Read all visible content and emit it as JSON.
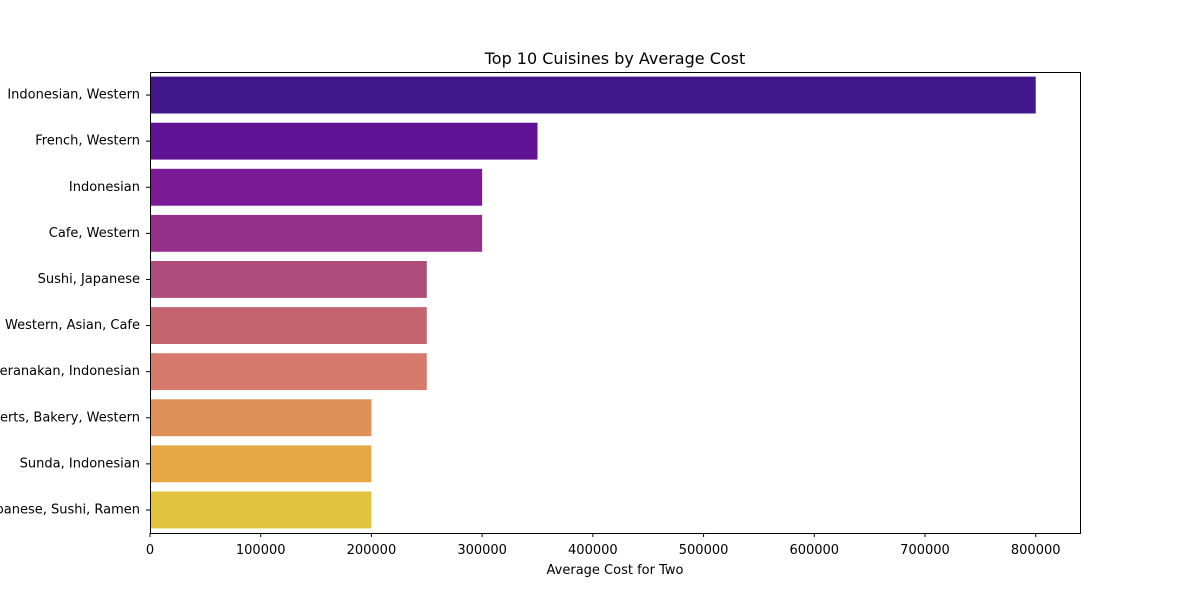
{
  "chart_data": {
    "type": "bar",
    "orientation": "horizontal",
    "title": "Top 10 Cuisines by Average Cost",
    "xlabel": "Average Cost for Two",
    "ylabel": "",
    "xlim": [
      0,
      840000
    ],
    "xticks": [
      0,
      100000,
      200000,
      300000,
      400000,
      500000,
      600000,
      700000,
      800000
    ],
    "xtick_labels": [
      "0",
      "100000",
      "200000",
      "300000",
      "400000",
      "500000",
      "600000",
      "700000",
      "800000"
    ],
    "grid": false,
    "categories": [
      "Indonesian, Western",
      "French, Western",
      "Indonesian",
      "Cafe, Western",
      "Sushi, Japanese",
      "Western, Asian, Cafe",
      "Peranakan, Indonesian",
      "Desserts, Bakery, Western",
      "Sunda, Indonesian",
      "Japanese, Sushi, Ramen"
    ],
    "values": [
      800000,
      350000,
      300000,
      300000,
      250000,
      250000,
      250000,
      200000,
      200000,
      200000
    ],
    "colors": [
      "#41178a",
      "#5f1394",
      "#7a1a94",
      "#943089",
      "#ad4b7b",
      "#c4646f",
      "#d67a6b",
      "#e0915a",
      "#e5a844",
      "#e3c43f"
    ]
  }
}
